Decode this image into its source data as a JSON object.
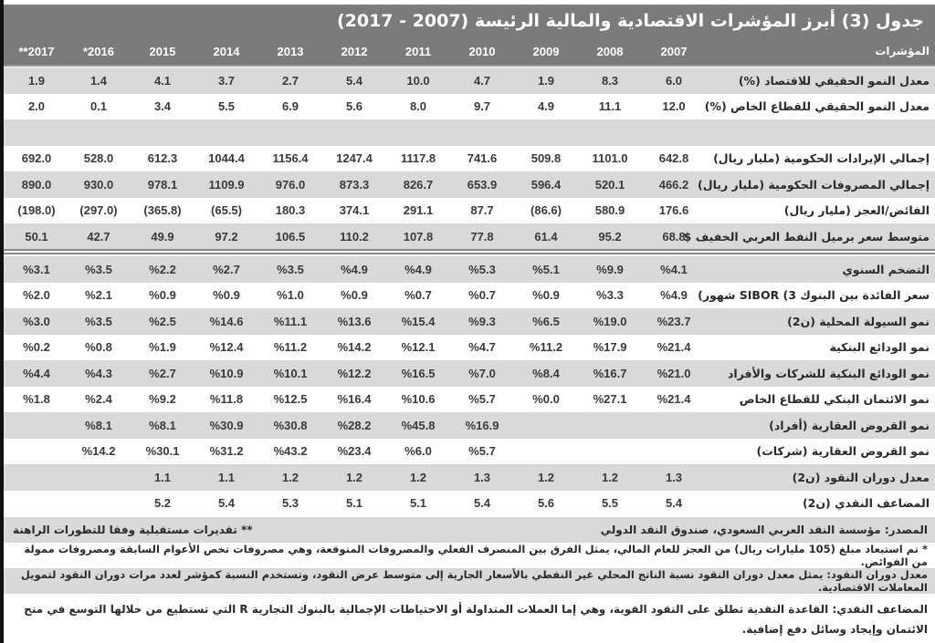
{
  "title": "جدول (3) أبرز المؤشرات الاقتصادية والمالية الرئيسة (2007 - 2017)",
  "header": {
    "label": "المؤشرات",
    "years": [
      "2007",
      "2008",
      "2009",
      "2010",
      "2011",
      "2012",
      "2013",
      "2014",
      "2015",
      "*2016",
      "**2017"
    ]
  },
  "rows_block1": [
    {
      "label": "معدل النمو الحقيقي للاقتصاد  (%)",
      "values": [
        "6.0",
        "8.3",
        "1.9",
        "4.7",
        "10.0",
        "5.4",
        "2.7",
        "3.7",
        "4.1",
        "1.4",
        "1.9"
      ]
    },
    {
      "label": "معدل النمو الحقيقي للقطاع الخاص  (%)",
      "values": [
        "12.0",
        "11.1",
        "4.9",
        "9.7",
        "8.0",
        "5.6",
        "6.9",
        "5.5",
        "3.4",
        "0.1",
        "2.0"
      ]
    },
    {
      "label": "",
      "values": [
        "",
        "",
        "",
        "",
        "",
        "",
        "",
        "",
        "",
        "",
        ""
      ]
    },
    {
      "label": "إجمالي الإيرادات الحكومية (مليار ريال)",
      "values": [
        "642.8",
        "1101.0",
        "509.8",
        "741.6",
        "1117.8",
        "1247.4",
        "1156.4",
        "1044.4",
        "612.3",
        "528.0",
        "692.0"
      ]
    },
    {
      "label": "إجمالي المصروفات الحكومية (مليار ريال)",
      "values": [
        "466.2",
        "520.1",
        "596.4",
        "653.9",
        "826.7",
        "873.3",
        "976.0",
        "1109.9",
        "978.1",
        "930.0",
        "890.0"
      ]
    },
    {
      "label": "الفائض/العجز (مليار ريال)",
      "values": [
        "176.6",
        "580.9",
        "(86.6)",
        "87.7",
        "291.1",
        "374.1",
        "180.3",
        "(65.5)",
        "(365.8)",
        "(297.0)",
        "(198.0)"
      ]
    },
    {
      "label": "متوسط سعر برميل النفط العربي الخفيف $",
      "values": [
        "68.8",
        "95.2",
        "61.4",
        "77.8",
        "107.8",
        "110.2",
        "106.5",
        "97.2",
        "49.9",
        "42.7",
        "50.1"
      ]
    }
  ],
  "rows_block2": [
    {
      "label": "التضخم السنوي",
      "values": [
        "%4.1",
        "%9.9",
        "%5.1",
        "%5.3",
        "%4.9",
        "%4.9",
        "%3.5",
        "%2.7",
        "%2.2",
        "%3.5",
        "%3.1"
      ]
    },
    {
      "label": "سعر الفائدة بين البنوك 3) SIBOR شهور)",
      "values": [
        "%4.9",
        "%3.3",
        "%0.9",
        "%0.7",
        "%0.7",
        "%0.9",
        "%1.0",
        "%0.9",
        "%0.9",
        "%2.1",
        "%2.0"
      ]
    },
    {
      "label": "نمو السيولة المحلية (ن2)",
      "values": [
        "%23.7",
        "%19.0",
        "%6.5",
        "%9.3",
        "%15.4",
        "%13.6",
        "%11.1",
        "%14.6",
        "%2.5",
        "%3.5",
        "%3.0"
      ]
    },
    {
      "label": "نمو الودائع البنكية",
      "values": [
        "%21.4",
        "%17.9",
        "%11.2",
        "%4.7",
        "%12.1",
        "%14.2",
        "%11.2",
        "%12.4",
        "%1.9",
        "%0.8",
        "%0.2"
      ]
    },
    {
      "label": "نمو الودائع البنكية للشركات والأفراد",
      "values": [
        "%21.0",
        "%16.7",
        "%8.4",
        "%7.0",
        "%16.5",
        "%12.2",
        "%10.1",
        "%10.9",
        "%2.7",
        "%4.3",
        "%4.4"
      ]
    },
    {
      "label": "نمو الائتمان البنكي للقطاع الخاص",
      "values": [
        "%21.4",
        "%27.1",
        "%0.0",
        "%5.7",
        "%10.6",
        "%16.4",
        "%12.5",
        "%11.8",
        "%9.2",
        "%2.4",
        "%1.8"
      ]
    },
    {
      "label": "نمو القروض العقارية (أفراد)",
      "values": [
        "",
        "",
        "",
        "%16.9",
        "%45.8",
        "%28.2",
        "%30.8",
        "%30.9",
        "%8.1",
        "%8.1",
        ""
      ]
    },
    {
      "label": "نمو القروض العقارية (شركات)",
      "values": [
        "",
        "",
        "",
        "%5.7",
        "%6.0",
        "%23.4",
        "%43.2",
        "%31.2",
        "%30.1",
        "%14.2",
        ""
      ]
    },
    {
      "label": "معدل دوران النقود (ن2)",
      "values": [
        "1.3",
        "1.2",
        "1.2",
        "1.3",
        "1.2",
        "1.2",
        "1.2",
        "1.1",
        "1.1",
        "",
        ""
      ]
    },
    {
      "label": "المضاعف النقدي (ن2)",
      "values": [
        "5.4",
        "5.5",
        "5.6",
        "5.4",
        "5.1",
        "5.1",
        "5.3",
        "5.4",
        "5.2",
        "",
        ""
      ]
    }
  ],
  "footer": {
    "source": "المصدر: مؤسسة النقد العربي السعودي، صندوق النقد الدولي",
    "estimates_note": "** تقديرات مستقبلية وفقا للتطورات الراهنة",
    "note1": "* تم استبعاد مبلغ (105 مليارات ريال) من العجز للعام المالي، يمثل الفرق بين المنصرف الفعلي والمصروفات المتوقعة، وهي مصروفات تخص الأعوام السابقة ومصروفات ممولة من الفوائض.",
    "note2": "معدل دوران النقود: يمثل معدل دوران النقود نسبة الناتج المحلي غير النفطي بالأسعار الجارية إلى متوسط عرض النقود، وتستخدم النسبة كمؤشر لعدد مرات دوران النقود لتمويل المعاملات الاقتصادية.",
    "note3": "المضاعف النقدي: القاعدة النقدية تطلق على النقود القوية، وهي إما العملات المتداولة أو الاحتياطات الإجمالية بالبنوك التجارية R التي تستطيع من خلالها التوسع في منح الائتمان وإيجاد وسائل دفع إضافية."
  },
  "colors": {
    "header_bg": "#7b7b7b",
    "row_gray": "#d9d9d9",
    "row_white": "#ffffff",
    "text": "#2a2a2a"
  }
}
